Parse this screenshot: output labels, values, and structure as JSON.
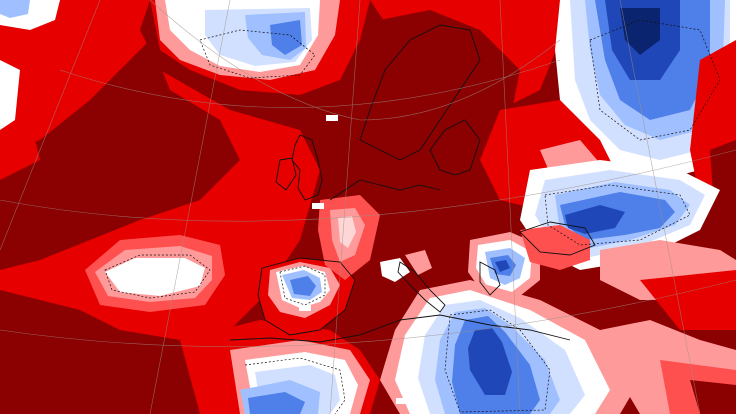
{
  "map": {
    "colors": {
      "dark_red": "#8b0000",
      "red": "#e60000",
      "light_red": "#ff5050",
      "pink": "#ff9a9a",
      "pale_pink": "#ffd6d6",
      "white": "#ffffff",
      "pale_blue": "#d2e0ff",
      "light_blue": "#9fbfff",
      "blue": "#4f7fe8",
      "dark_blue": "#1f47b8",
      "navy": "#0a2470",
      "coast": "#111111",
      "grid": "#9b8f86"
    },
    "grid_labels": [
      "",
      "",
      "",
      ""
    ]
  }
}
